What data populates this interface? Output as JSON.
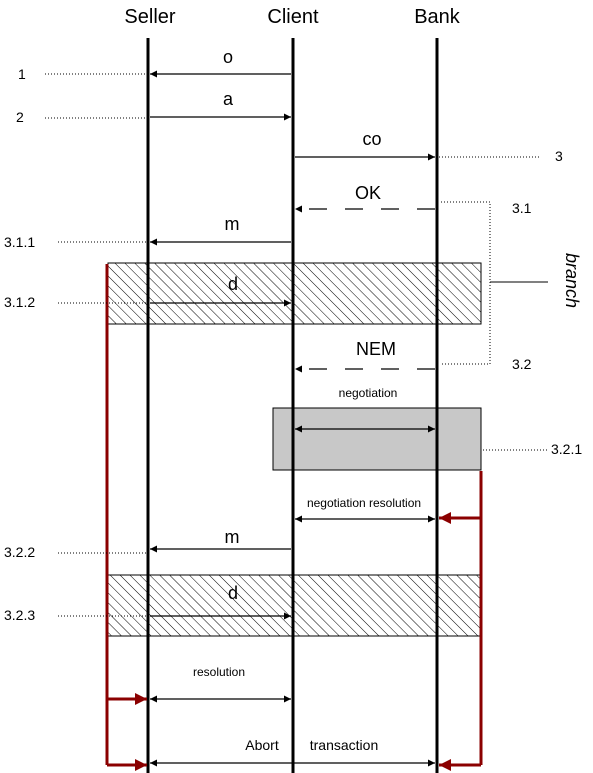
{
  "participants": {
    "seller": "Seller",
    "client": "Client",
    "bank": "Bank"
  },
  "messages": {
    "o": "o",
    "a": "a",
    "co": "co",
    "ok": "OK",
    "m1": "m",
    "d1": "d",
    "nem": "NEM",
    "negotiation": "negotiation",
    "negotiation_resolution": "negotiation resolution",
    "m2": "m",
    "d2": "d",
    "resolution": "resolution",
    "abort": "Abort",
    "transaction": "transaction"
  },
  "steps": {
    "s1": "1",
    "s2": "2",
    "s3": "3",
    "s3_1": "3.1",
    "s3_1_1": "3.1.1",
    "s3_1_2": "3.1.2",
    "s3_2": "3.2",
    "s3_2_1": "3.2.1",
    "s3_2_2": "3.2.2",
    "s3_2_3": "3.2.3"
  },
  "branch_label": "branch",
  "colors": {
    "abort_line": "#8b0000",
    "negotiation_box": "#c8c8c8",
    "lifeline": "#000000"
  }
}
